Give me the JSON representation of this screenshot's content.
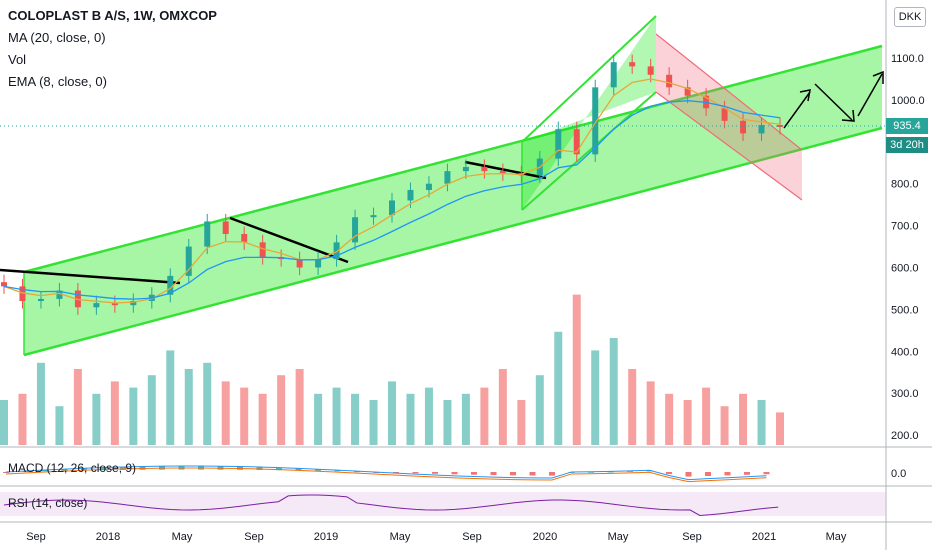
{
  "legend": {
    "title": "COLOPLAST B A/S, 1W, OMXCOP",
    "ma": "MA (20, close, 0)",
    "vol": "Vol",
    "ema": "EMA (8, close, 0)"
  },
  "currency": "DKK",
  "last_price": "935.4",
  "countdown": "3d 20h",
  "macd_label": "MACD (12, 26, close, 9)",
  "rsi_label": "RSI (14, close)",
  "chart_data": {
    "type": "candlestick",
    "y_axis": {
      "ticks": [
        "1100.0",
        "1000.0",
        "900.0",
        "800.0",
        "700.0",
        "600.0",
        "500.0",
        "400.0",
        "300.0",
        "200.0"
      ],
      "range": [
        170,
        1200
      ]
    },
    "macd_axis": {
      "ticks": [
        "0.0"
      ]
    },
    "x_axis": {
      "ticks": [
        "Sep",
        "2018",
        "May",
        "Sep",
        "2019",
        "May",
        "Sep",
        "2020",
        "May",
        "Sep",
        "2021",
        "May"
      ]
    },
    "price_series": [
      {
        "date": "2017-08",
        "close": 555
      },
      {
        "date": "2017-09",
        "close": 520
      },
      {
        "date": "2017-10",
        "close": 525
      },
      {
        "date": "2017-11",
        "close": 545
      },
      {
        "date": "2017-12",
        "close": 505
      },
      {
        "date": "2018-01",
        "close": 515
      },
      {
        "date": "2018-02",
        "close": 510
      },
      {
        "date": "2018-03",
        "close": 520
      },
      {
        "date": "2018-04",
        "close": 535
      },
      {
        "date": "2018-05",
        "close": 580
      },
      {
        "date": "2018-06",
        "close": 650
      },
      {
        "date": "2018-07",
        "close": 710
      },
      {
        "date": "2018-08",
        "close": 680
      },
      {
        "date": "2018-09",
        "close": 660
      },
      {
        "date": "2018-10",
        "close": 625
      },
      {
        "date": "2018-11",
        "close": 620
      },
      {
        "date": "2018-12",
        "close": 600
      },
      {
        "date": "2019-01",
        "close": 620
      },
      {
        "date": "2019-02",
        "close": 660
      },
      {
        "date": "2019-03",
        "close": 720
      },
      {
        "date": "2019-04",
        "close": 725
      },
      {
        "date": "2019-05",
        "close": 760
      },
      {
        "date": "2019-06",
        "close": 785
      },
      {
        "date": "2019-07",
        "close": 800
      },
      {
        "date": "2019-08",
        "close": 830
      },
      {
        "date": "2019-09",
        "close": 840
      },
      {
        "date": "2019-10",
        "close": 830
      },
      {
        "date": "2019-11",
        "close": 825
      },
      {
        "date": "2019-12",
        "close": 820
      },
      {
        "date": "2020-01",
        "close": 860
      },
      {
        "date": "2020-02",
        "close": 930
      },
      {
        "date": "2020-03",
        "close": 870
      },
      {
        "date": "2020-04",
        "close": 1030
      },
      {
        "date": "2020-05",
        "close": 1090
      },
      {
        "date": "2020-06",
        "close": 1080
      },
      {
        "date": "2020-07",
        "close": 1060
      },
      {
        "date": "2020-08",
        "close": 1030
      },
      {
        "date": "2020-09",
        "close": 1010
      },
      {
        "date": "2020-10",
        "close": 980
      },
      {
        "date": "2020-11",
        "close": 950
      },
      {
        "date": "2020-12",
        "close": 920
      },
      {
        "date": "2021-01",
        "close": 940
      },
      {
        "date": "2021-02",
        "close": 935.4
      }
    ],
    "volume_series": [
      250,
      260,
      310,
      240,
      300,
      260,
      280,
      270,
      290,
      330,
      300,
      310,
      280,
      270,
      260,
      290,
      300,
      260,
      270,
      260,
      250,
      280,
      260,
      270,
      250,
      260,
      270,
      300,
      250,
      290,
      360,
      420,
      330,
      350,
      300,
      280,
      260,
      250,
      270,
      240,
      260,
      250,
      230
    ]
  },
  "colors": {
    "channel_fill": "#00e600",
    "channel_line": "#33e333",
    "down_channel": "#f06b7a",
    "ma": "#2196f3",
    "ema": "#e8a838",
    "up": "#26a69a",
    "down": "#ef5350",
    "macd": "#2196f3",
    "signal": "#ff6d00",
    "rsi": "#7b1fa2"
  }
}
